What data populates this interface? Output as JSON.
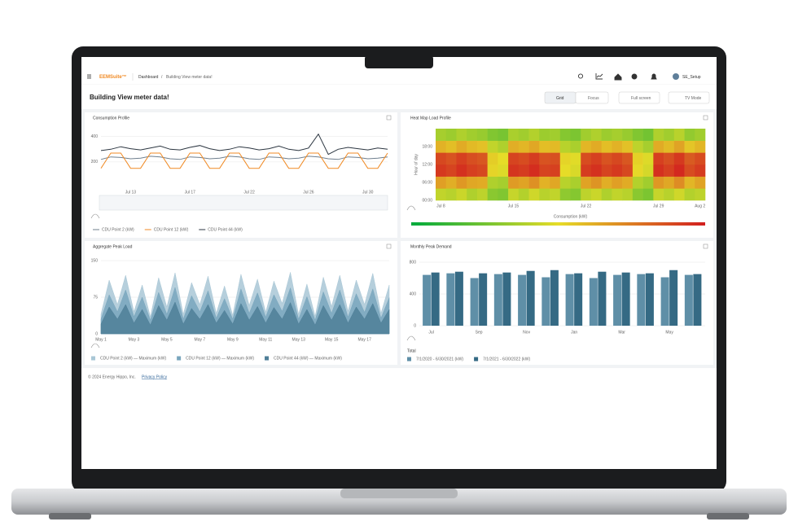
{
  "header": {
    "logo": "EEMSuite™",
    "breadcrumb": [
      "Dashboard",
      "Building View meter data!"
    ],
    "user": "SE_Setup"
  },
  "page_title": "Building View meter data!",
  "toolbar": [
    "Grid",
    "Focus",
    "Full screen",
    "TV Mode"
  ],
  "chart_data": [
    {
      "type": "line",
      "title": "Consumption Profile",
      "categories": [
        null,
        null,
        null,
        "Jul 13",
        null,
        null,
        null,
        null,
        null,
        "Jul 17",
        null,
        null,
        null,
        null,
        null,
        "Jul 22",
        null,
        null,
        null,
        null,
        null,
        "Jul 26",
        null,
        null,
        null,
        null,
        null,
        "Jul 30",
        null,
        null
      ],
      "series": [
        {
          "name": "CDU Point 2 (kW)",
          "color": "#6f7f8e",
          "values": [
            220,
            240,
            235,
            225,
            230,
            245,
            240,
            225,
            220,
            240,
            235,
            225,
            230,
            245,
            240,
            225,
            220,
            240,
            235,
            225,
            230,
            245,
            240,
            225,
            220,
            240,
            235,
            225,
            230,
            240
          ]
        },
        {
          "name": "CDU Point 12 (kW)",
          "color": "#f08a24",
          "values": [
            150,
            270,
            270,
            150,
            150,
            270,
            270,
            150,
            150,
            270,
            270,
            150,
            150,
            270,
            270,
            150,
            150,
            270,
            270,
            150,
            150,
            270,
            270,
            150,
            150,
            270,
            270,
            150,
            150,
            270
          ]
        },
        {
          "name": "CDU Point 44 (kW)",
          "color": "#2b3540",
          "values": [
            290,
            300,
            320,
            305,
            295,
            310,
            325,
            300,
            295,
            315,
            330,
            305,
            290,
            300,
            320,
            310,
            295,
            305,
            325,
            300,
            290,
            310,
            420,
            260,
            300,
            315,
            305,
            295,
            310,
            300
          ]
        }
      ],
      "ylim": [
        0,
        450
      ],
      "yticks": [
        200,
        400
      ],
      "grid": true,
      "legend": "bottom"
    },
    {
      "type": "heatmap",
      "title": "Heat Map Load Profile",
      "categories": [
        "Jul 8",
        null,
        null,
        null,
        null,
        null,
        null,
        "Jul 15",
        null,
        null,
        null,
        null,
        null,
        null,
        "Jul 22",
        null,
        null,
        null,
        null,
        null,
        null,
        "Jul 29",
        null,
        null,
        null,
        "Aug 2"
      ],
      "ylabel": "Hour of day",
      "colorbar_label": "Consumption (kW)",
      "ylim": [
        0,
        24
      ],
      "yticks": [
        {
          "value": 0,
          "label": "00:00"
        },
        {
          "value": 6,
          "label": "06:00"
        },
        {
          "value": 12,
          "label": "12:00"
        },
        {
          "value": 18,
          "label": "18:00"
        }
      ],
      "zlim": [
        0,
        100
      ],
      "z": [
        [
          42,
          40,
          44,
          38,
          41,
          30,
          28,
          43,
          39,
          45,
          40,
          42,
          31,
          29,
          41,
          44,
          38,
          42,
          40,
          30,
          27,
          43,
          40,
          45,
          39,
          41
        ],
        [
          66,
          62,
          68,
          64,
          63,
          38,
          36,
          67,
          65,
          70,
          61,
          64,
          40,
          37,
          65,
          69,
          62,
          66,
          63,
          39,
          35,
          68,
          64,
          71,
          60,
          65
        ],
        [
          93,
          90,
          95,
          91,
          89,
          52,
          48,
          94,
          92,
          96,
          90,
          91,
          50,
          47,
          92,
          95,
          90,
          93,
          89,
          51,
          46,
          95,
          91,
          97,
          88,
          92
        ],
        [
          89,
          86,
          91,
          87,
          85,
          54,
          50,
          90,
          88,
          92,
          86,
          87,
          52,
          49,
          88,
          91,
          86,
          89,
          85,
          53,
          48,
          91,
          87,
          93,
          84,
          88
        ],
        [
          61,
          58,
          63,
          59,
          57,
          42,
          38,
          62,
          60,
          64,
          58,
          59,
          40,
          37,
          60,
          63,
          58,
          61,
          57,
          41,
          36,
          63,
          59,
          65,
          56,
          60
        ],
        [
          36,
          34,
          38,
          35,
          33,
          28,
          26,
          37,
          35,
          39,
          34,
          35,
          29,
          27,
          35,
          38,
          34,
          36,
          33,
          28,
          25,
          38,
          35,
          40,
          32,
          35
        ]
      ]
    },
    {
      "type": "area",
      "title": "Aggregate Peak Load",
      "categories": [
        "May 1",
        null,
        null,
        null,
        "May 3",
        null,
        null,
        null,
        "May 5",
        null,
        null,
        null,
        "May 7",
        null,
        null,
        null,
        "May 9",
        null,
        null,
        null,
        "May 11",
        null,
        null,
        null,
        "May 13",
        null,
        null,
        null,
        "May 15",
        null,
        null,
        null,
        "May 17",
        null,
        null,
        null
      ],
      "series": [
        {
          "name": "CDU Point 2 (kW) — Maximum (kW)",
          "color": "#a9c7d6",
          "values": [
            40,
            110,
            60,
            120,
            45,
            100,
            35,
            115,
            55,
            125,
            40,
            105,
            60,
            118,
            42,
            98,
            38,
            122,
            58,
            112,
            44,
            108,
            62,
            126,
            40,
            102,
            36,
            116,
            56,
            120,
            46,
            110,
            60,
            124,
            42,
            100
          ]
        },
        {
          "name": "CDU Point 12 (kW) — Maximum (kW)",
          "color": "#79a6bd",
          "values": [
            30,
            80,
            45,
            90,
            35,
            75,
            28,
            85,
            40,
            95,
            30,
            78,
            45,
            88,
            32,
            72,
            30,
            92,
            42,
            84,
            34,
            80,
            46,
            94,
            30,
            76,
            28,
            86,
            42,
            90,
            34,
            82,
            44,
            92,
            32,
            74
          ]
        },
        {
          "name": "CDU Point 44 (kW) — Maximum (kW)",
          "color": "#4f7f98",
          "values": [
            20,
            55,
            30,
            60,
            22,
            50,
            18,
            58,
            28,
            65,
            20,
            52,
            30,
            60,
            22,
            48,
            20,
            62,
            28,
            56,
            22,
            54,
            30,
            64,
            20,
            50,
            18,
            58,
            28,
            60,
            22,
            55,
            30,
            62,
            22,
            50
          ]
        }
      ],
      "ylim": [
        0,
        150
      ],
      "yticks": [
        0,
        75,
        150
      ],
      "grid": true,
      "legend": "bottom"
    },
    {
      "type": "bar",
      "title": "Monthly Peak Demand",
      "categories": [
        "Jul",
        null,
        "Sep",
        null,
        "Nov",
        null,
        "Jan",
        null,
        "Mar",
        null,
        "May",
        null
      ],
      "legend_title": "Total",
      "series": [
        {
          "name": "7/1/2020 - 6/30/2021 (kW)",
          "color": "#5f8fa7",
          "values": [
            640,
            660,
            600,
            650,
            640,
            610,
            650,
            600,
            640,
            650,
            610,
            640
          ]
        },
        {
          "name": "7/1/2021 - 6/30/2022 (kW)",
          "color": "#356a84",
          "values": [
            670,
            680,
            660,
            670,
            690,
            700,
            660,
            680,
            670,
            660,
            700,
            650
          ]
        }
      ],
      "ylim": [
        0,
        800
      ],
      "yticks": [
        0,
        400,
        800
      ],
      "grid": true,
      "legend": "bottom"
    }
  ],
  "footer": {
    "copyright": "© 2024 Energy Hippo, Inc.",
    "link": "Privacy Policy"
  }
}
